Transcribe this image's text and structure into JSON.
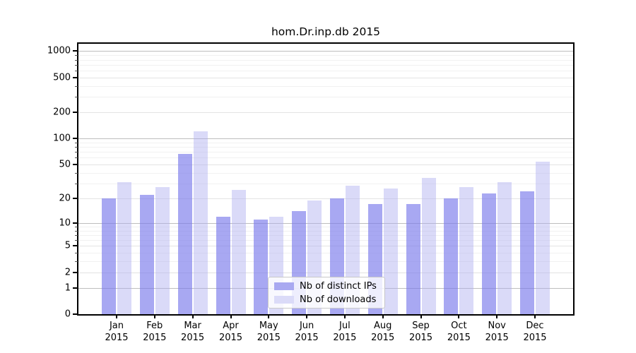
{
  "title": "hom.Dr.inp.db 2015",
  "legend": {
    "items": [
      {
        "label": "Nb of distinct IPs",
        "swatch_color": "#a9a9f1"
      },
      {
        "label": "Nb of downloads",
        "swatch_color": "#dbdbf8"
      }
    ]
  },
  "chart_data": {
    "type": "bar",
    "title": "hom.Dr.inp.db 2015",
    "categories": [
      "Jan",
      "Feb",
      "Mar",
      "Apr",
      "May",
      "Jun",
      "Jul",
      "Aug",
      "Sep",
      "Oct",
      "Nov",
      "Dec"
    ],
    "x_sublabel_year": "2015",
    "series": [
      {
        "name": "Nb of distinct IPs",
        "color": "rgba(121,121,235,0.65)",
        "values": [
          20,
          22,
          67,
          12,
          11,
          14,
          20,
          17,
          17,
          20,
          23,
          24
        ]
      },
      {
        "name": "Nb of downloads",
        "color": "rgba(173,173,239,0.45)",
        "values": [
          31,
          27,
          121,
          25,
          12,
          19,
          28,
          26,
          35,
          27,
          31,
          54
        ]
      }
    ],
    "y_scale": "log10(1+y)",
    "y_ticks": [
      0,
      1,
      2,
      5,
      10,
      20,
      50,
      100,
      200,
      500,
      1000
    ],
    "y_major_ticks": [
      1,
      10,
      100,
      1000
    ],
    "y_minor_gridlines": [
      3,
      4,
      6,
      7,
      8,
      9,
      30,
      40,
      60,
      70,
      80,
      90,
      300,
      400,
      600,
      700,
      800,
      900
    ],
    "ylim": [
      0,
      1240
    ],
    "grid": true,
    "legend_position": "inside lower center",
    "grid_color_major": "#bdbdbd",
    "grid_color_labeled": "#e3e3e3",
    "grid_color_minor": "#f1f1f1"
  }
}
